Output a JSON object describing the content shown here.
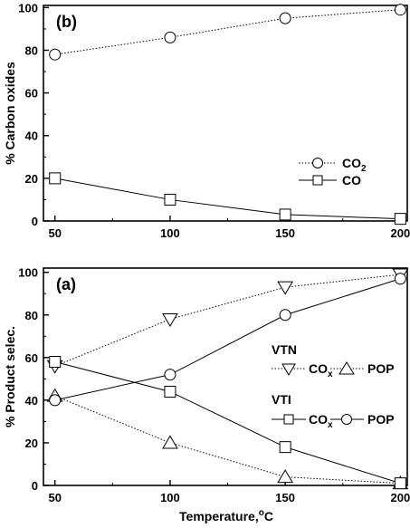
{
  "chart_data": [
    {
      "panel_label": "(b)",
      "type": "line",
      "ylabel": "% Carbon oxides",
      "xlabel": "",
      "x": [
        50,
        100,
        150,
        200
      ],
      "xlim": [
        45,
        203
      ],
      "ylim": [
        0,
        101
      ],
      "xticks": [
        "50",
        "100",
        "150",
        "200"
      ],
      "yticks": [
        "0",
        "20",
        "40",
        "60",
        "80",
        "100"
      ],
      "grid": false,
      "legend_position": "right",
      "series": [
        {
          "name": "CO2",
          "marker": "circle",
          "line": "dotted",
          "values": [
            78,
            86,
            95,
            99
          ]
        },
        {
          "name": "CO",
          "marker": "square",
          "line": "solid",
          "values": [
            20,
            10,
            3,
            1
          ]
        }
      ]
    },
    {
      "panel_label": "(a)",
      "type": "line",
      "ylabel": "%  Product selec.",
      "xlabel": "Temperature,",
      "xlabel_unit": "oC",
      "x": [
        50,
        100,
        150,
        200
      ],
      "xlim": [
        45,
        203
      ],
      "ylim": [
        0,
        102
      ],
      "xticks": [
        "50",
        "100",
        "150",
        "200"
      ],
      "yticks": [
        "0",
        "20",
        "40",
        "60",
        "80",
        "100"
      ],
      "grid": false,
      "legend_position": "right",
      "legend_groups": [
        "VTN",
        "VTI"
      ],
      "series": [
        {
          "group": "VTN",
          "name": "COx",
          "marker": "triangle-down",
          "line": "dotted",
          "values": [
            56,
            78,
            93,
            99
          ]
        },
        {
          "group": "VTN",
          "name": "POP",
          "marker": "triangle-up",
          "line": "dotted",
          "values": [
            42,
            20,
            4,
            1
          ]
        },
        {
          "group": "VTI",
          "name": "COx",
          "marker": "square",
          "line": "solid",
          "values": [
            58,
            44,
            18,
            1
          ]
        },
        {
          "group": "VTI",
          "name": "POP",
          "marker": "circle",
          "line": "solid",
          "values": [
            40,
            52,
            80,
            97
          ]
        }
      ]
    }
  ]
}
